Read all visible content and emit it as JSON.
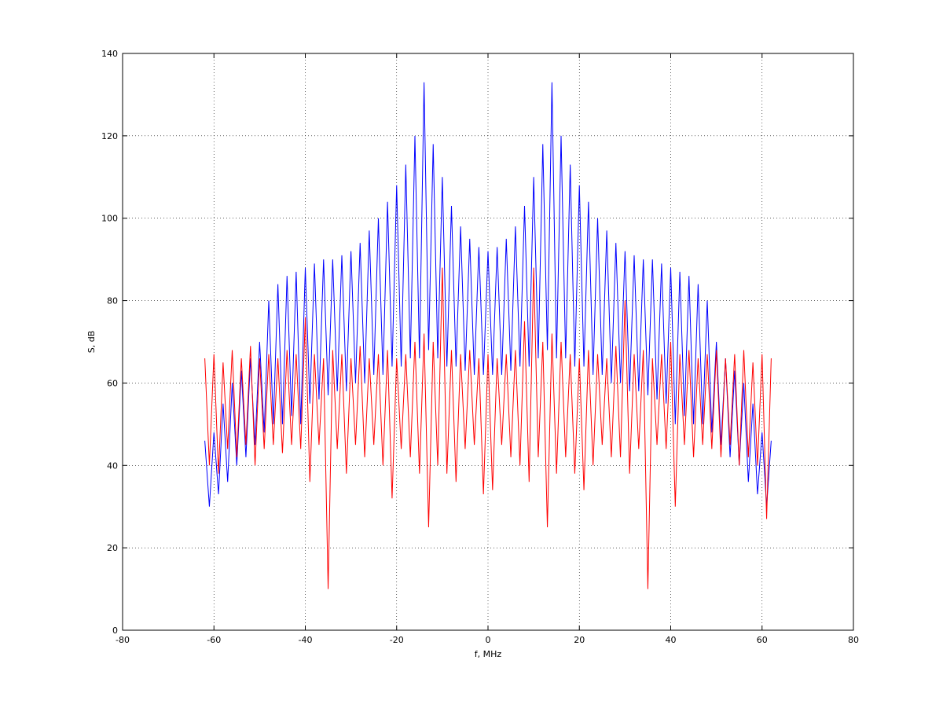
{
  "chart_data": {
    "type": "line",
    "xlabel": "f, MHz",
    "ylabel": "S, dB",
    "xlim": [
      -80,
      80
    ],
    "xticks": [
      -80,
      -60,
      -40,
      -20,
      0,
      20,
      40,
      60,
      80
    ],
    "ylim": [
      0,
      140
    ],
    "yticks": [
      0,
      20,
      40,
      60,
      80,
      100,
      120,
      140
    ],
    "grid": true,
    "x": [
      -62,
      -61,
      -60,
      -59,
      -58,
      -57,
      -56,
      -55,
      -54,
      -53,
      -52,
      -51,
      -50,
      -49,
      -48,
      -47,
      -46,
      -45,
      -44,
      -43,
      -42,
      -41,
      -40,
      -39,
      -38,
      -37,
      -36,
      -35,
      -34,
      -33,
      -32,
      -31,
      -30,
      -29,
      -28,
      -27,
      -26,
      -25,
      -24,
      -23,
      -22,
      -21,
      -20,
      -19,
      -18,
      -17,
      -16,
      -15,
      -14,
      -13,
      -12,
      -11,
      -10,
      -9,
      -8,
      -7,
      -6,
      -5,
      -4,
      -3,
      -2,
      -1,
      0,
      1,
      2,
      3,
      4,
      5,
      6,
      7,
      8,
      9,
      10,
      11,
      12,
      13,
      14,
      15,
      16,
      17,
      18,
      19,
      20,
      21,
      22,
      23,
      24,
      25,
      26,
      27,
      28,
      29,
      30,
      31,
      32,
      33,
      34,
      35,
      36,
      37,
      38,
      39,
      40,
      41,
      42,
      43,
      44,
      45,
      46,
      47,
      48,
      49,
      50,
      51,
      52,
      53,
      54,
      55,
      56,
      57,
      58,
      59,
      60,
      61,
      62
    ],
    "series": [
      {
        "color": "#0000ff",
        "values": [
          46,
          30,
          48,
          33,
          55,
          36,
          60,
          40,
          63,
          42,
          66,
          45,
          70,
          48,
          80,
          50,
          84,
          50,
          86,
          52,
          87,
          50,
          88,
          55,
          89,
          56,
          90,
          57,
          90,
          58,
          91,
          58,
          92,
          60,
          94,
          60,
          97,
          62,
          100,
          62,
          104,
          64,
          108,
          64,
          113,
          66,
          120,
          66,
          133,
          68,
          118,
          66,
          110,
          64,
          103,
          64,
          98,
          63,
          95,
          62,
          93,
          62,
          92,
          62,
          93,
          62,
          95,
          63,
          98,
          64,
          103,
          64,
          110,
          66,
          118,
          68,
          133,
          66,
          120,
          66,
          113,
          64,
          108,
          64,
          104,
          62,
          100,
          62,
          97,
          60,
          94,
          60,
          92,
          58,
          91,
          58,
          90,
          57,
          90,
          56,
          89,
          55,
          88,
          50,
          87,
          52,
          86,
          50,
          84,
          50,
          80,
          48,
          70,
          45,
          66,
          42,
          63,
          40,
          60,
          36,
          55,
          33,
          48,
          30,
          46
        ]
      },
      {
        "color": "#ff0000",
        "values": [
          66,
          40,
          67,
          38,
          65,
          44,
          68,
          42,
          66,
          45,
          69,
          40,
          66,
          44,
          67,
          45,
          66,
          43,
          68,
          45,
          67,
          44,
          76,
          36,
          67,
          45,
          66,
          10,
          68,
          44,
          67,
          38,
          66,
          45,
          69,
          42,
          66,
          45,
          67,
          40,
          68,
          32,
          66,
          44,
          67,
          42,
          70,
          38,
          72,
          25,
          70,
          40,
          88,
          38,
          68,
          36,
          67,
          44,
          68,
          45,
          66,
          33,
          67,
          34,
          66,
          45,
          67,
          42,
          68,
          40,
          75,
          36,
          88,
          42,
          70,
          25,
          72,
          38,
          70,
          42,
          67,
          38,
          66,
          34,
          68,
          40,
          67,
          45,
          66,
          42,
          69,
          42,
          80,
          38,
          67,
          44,
          68,
          10,
          66,
          45,
          67,
          44,
          70,
          30,
          67,
          45,
          68,
          42,
          66,
          45,
          67,
          44,
          68,
          42,
          66,
          45,
          67,
          40,
          68,
          42,
          65,
          40,
          67,
          27,
          66
        ]
      }
    ]
  }
}
